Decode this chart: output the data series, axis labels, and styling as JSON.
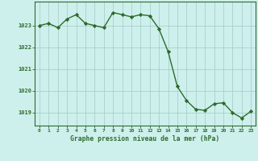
{
  "x": [
    0,
    1,
    2,
    3,
    4,
    5,
    6,
    7,
    8,
    9,
    10,
    11,
    12,
    13,
    14,
    15,
    16,
    17,
    18,
    19,
    20,
    21,
    22,
    23
  ],
  "y": [
    1023.0,
    1023.1,
    1022.9,
    1023.3,
    1023.5,
    1023.1,
    1023.0,
    1022.9,
    1023.6,
    1023.5,
    1023.4,
    1023.5,
    1023.45,
    1022.85,
    1021.8,
    1020.2,
    1019.55,
    1019.15,
    1019.1,
    1019.4,
    1019.45,
    1019.0,
    1018.75,
    1019.05
  ],
  "line_color": "#2d6a2d",
  "marker": "D",
  "markersize": 2.2,
  "linewidth": 1.0,
  "bg_color": "#cef0ec",
  "grid_color": "#aacfcb",
  "tick_label_color": "#2d6a2d",
  "xlabel": "Graphe pression niveau de la mer (hPa)",
  "ylim": [
    1018.4,
    1024.1
  ],
  "yticks": [
    1019,
    1020,
    1021,
    1022,
    1023
  ],
  "xticks": [
    0,
    1,
    2,
    3,
    4,
    5,
    6,
    7,
    8,
    9,
    10,
    11,
    12,
    13,
    14,
    15,
    16,
    17,
    18,
    19,
    20,
    21,
    22,
    23
  ]
}
